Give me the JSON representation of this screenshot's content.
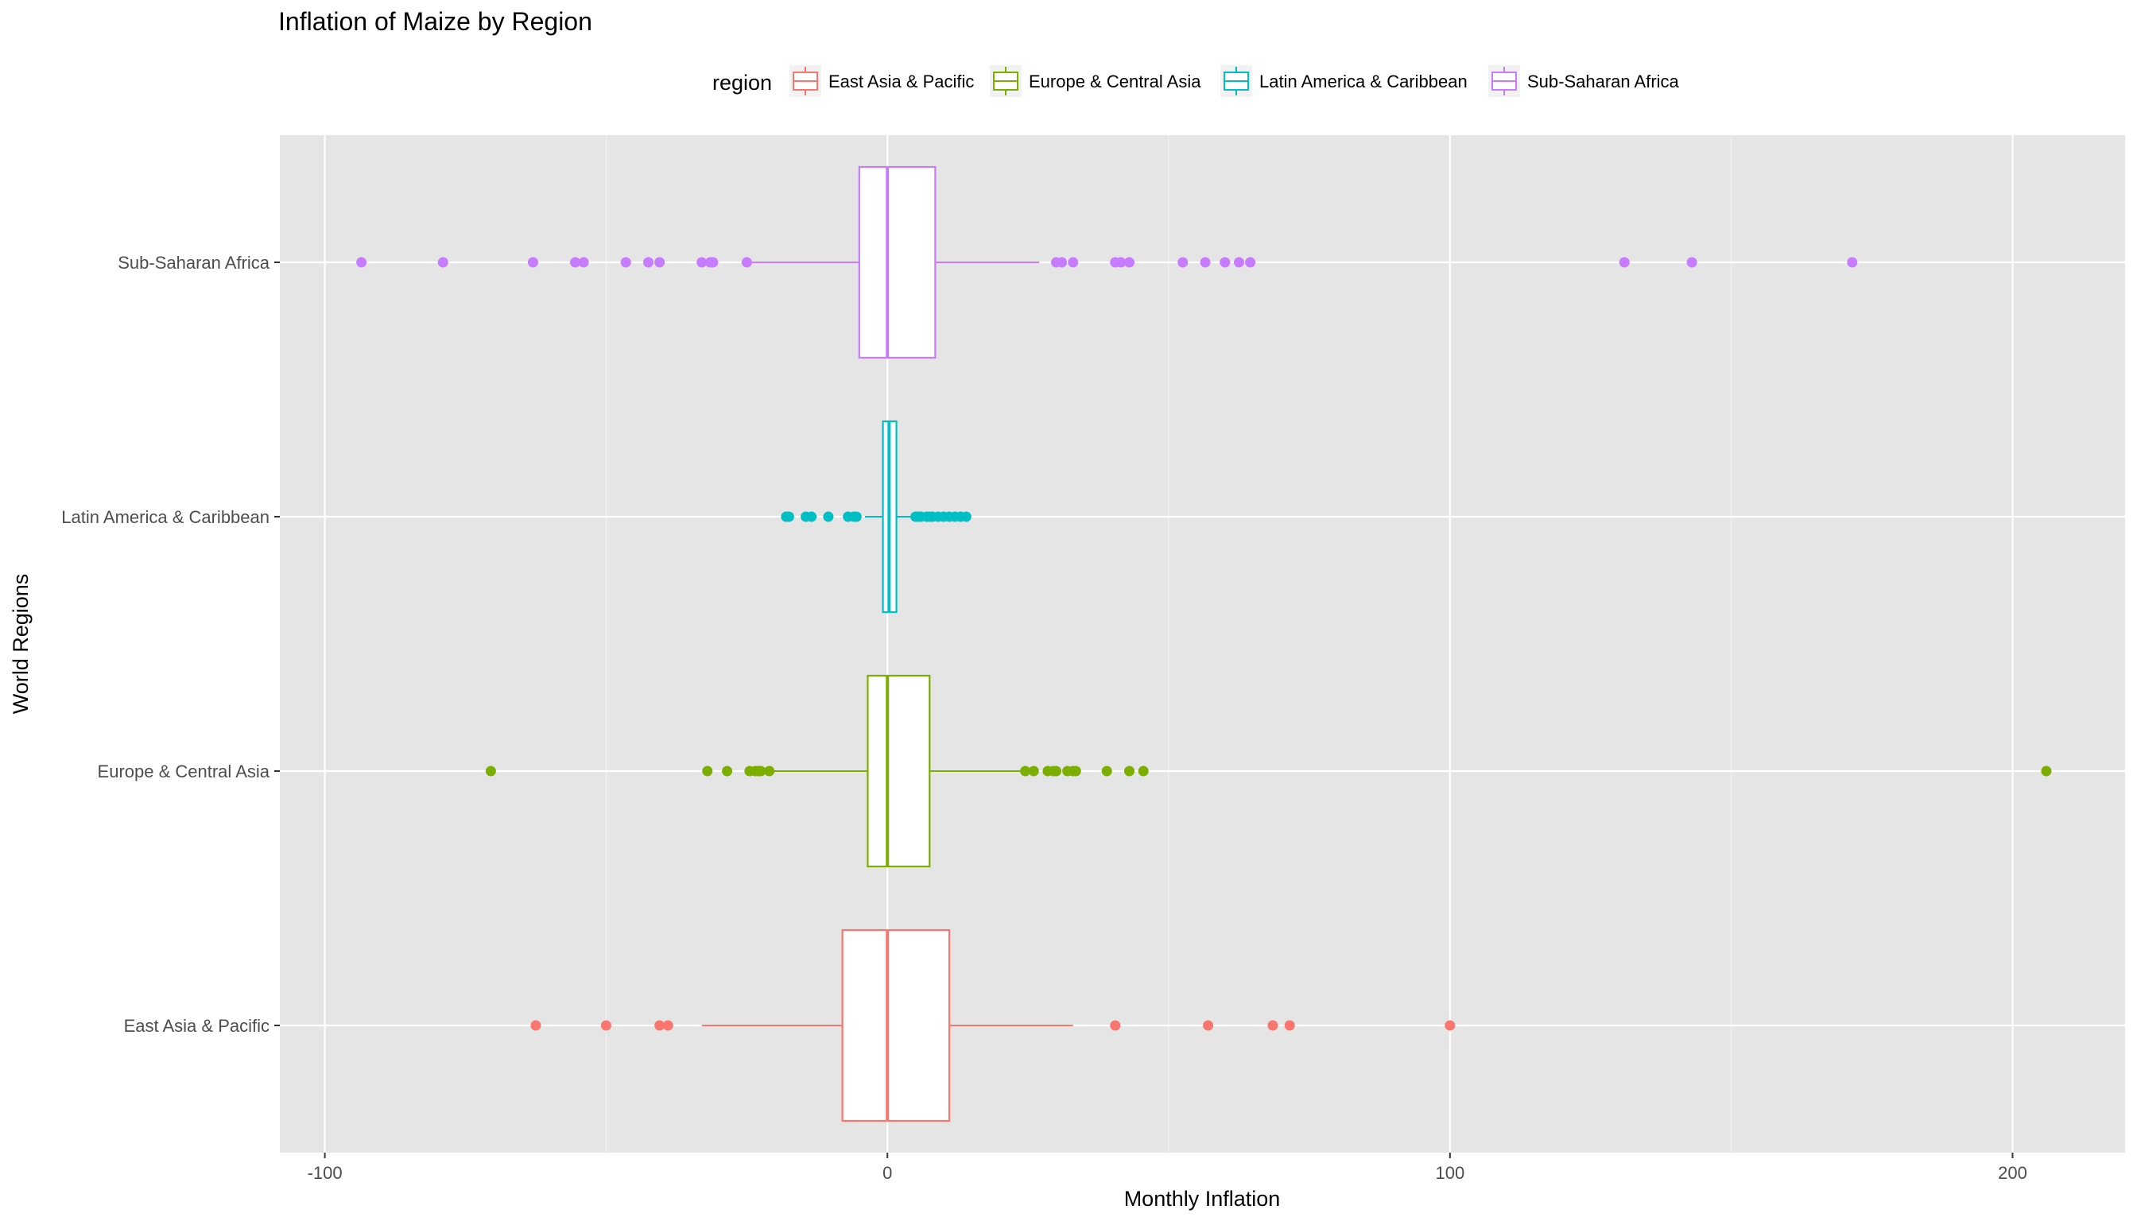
{
  "chart_data": {
    "type": "boxplot",
    "title": "Inflation of Maize by Region",
    "xlabel": "Monthly Inflation",
    "ylabel": "World Regions",
    "xlim": [
      -108,
      220
    ],
    "x_ticks": [
      -100,
      0,
      100,
      200
    ],
    "x_tick_labels": [
      "-100",
      "0",
      "100",
      "200"
    ],
    "grid": true,
    "legend": {
      "title": "region",
      "position": "top"
    },
    "categories": [
      "East Asia & Pacific",
      "Europe & Central Asia",
      "Latin America & Caribbean",
      "Sub-Saharan Africa"
    ],
    "series": [
      {
        "name": "East Asia & Pacific",
        "color": "#F8766D",
        "whisker_low": -33,
        "q1": -8,
        "median": 0,
        "q3": 11,
        "whisker_high": 33,
        "outliers": [
          -62.5,
          -50,
          -40.5,
          -39,
          40.5,
          57,
          68.5,
          71.5,
          100
        ]
      },
      {
        "name": "Europe & Central Asia",
        "color": "#7CAE00",
        "whisker_low": -21,
        "q1": -3.5,
        "median": 0,
        "q3": 7.5,
        "whisker_high": 24,
        "outliers": [
          -70.5,
          -32,
          -28.5,
          -24.5,
          -23.5,
          -23,
          -22.5,
          -21,
          24.5,
          26,
          28.5,
          29.5,
          30,
          32,
          33,
          33.5,
          39,
          43,
          45.5,
          206
        ]
      },
      {
        "name": "Latin America & Caribbean",
        "color": "#00BFC4",
        "whisker_low": -4,
        "q1": -0.8,
        "median": 0.3,
        "q3": 1.6,
        "whisker_high": 4.5,
        "outliers": [
          -18,
          -17.5,
          -14.5,
          -13.5,
          -10.5,
          -7,
          -6,
          -5.5,
          5,
          5.5,
          6,
          7,
          7.5,
          8,
          9,
          10,
          11,
          12,
          13,
          14
        ]
      },
      {
        "name": "Sub-Saharan Africa",
        "color": "#C77CFF",
        "whisker_low": -25,
        "q1": -5,
        "median": 0,
        "q3": 8.5,
        "whisker_high": 27,
        "outliers": [
          -93.5,
          -79,
          -63,
          -55.5,
          -54,
          -46.5,
          -42.5,
          -40.5,
          -33,
          -31.5,
          -31,
          -25,
          30,
          31,
          33,
          40.5,
          41.5,
          43,
          52.5,
          56.5,
          60,
          62.5,
          64.5,
          131,
          143,
          171.5
        ]
      }
    ]
  }
}
